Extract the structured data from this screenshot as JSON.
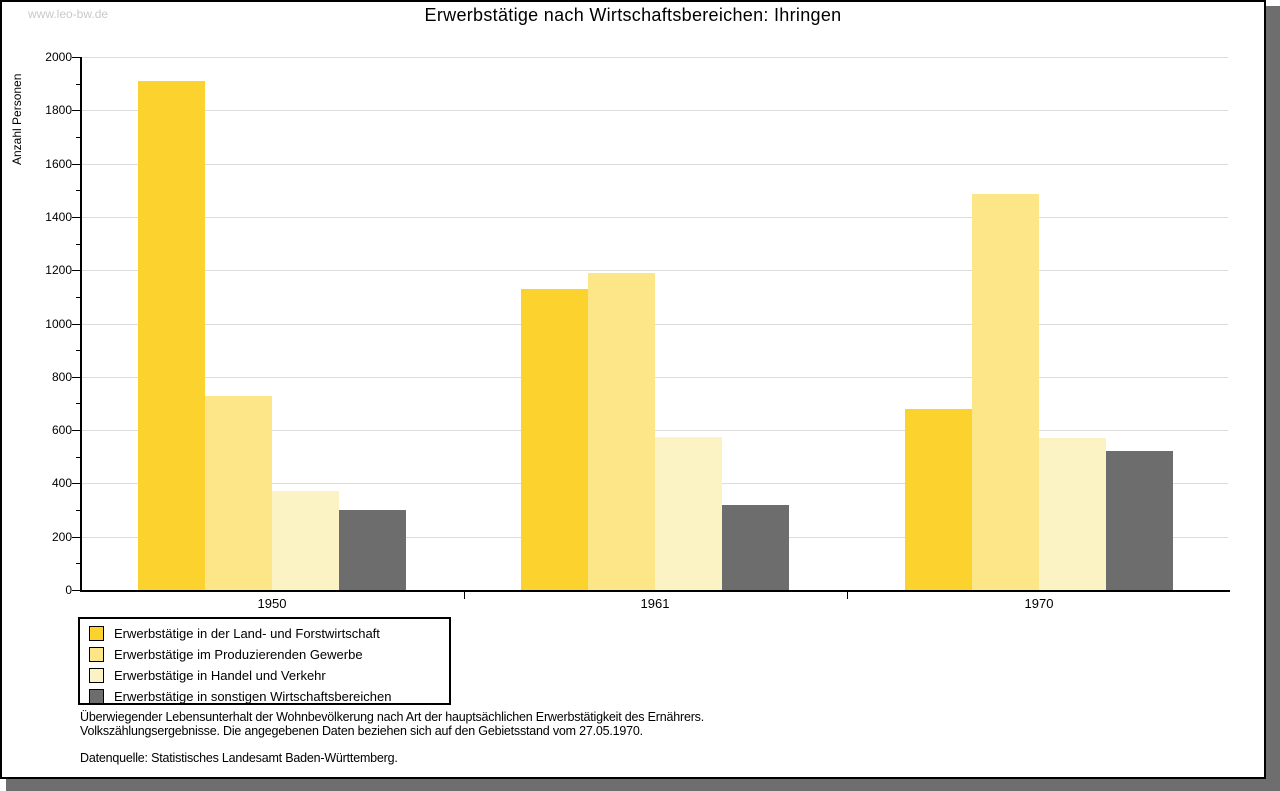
{
  "watermark": "www.leo-bw.de",
  "header": {
    "title": "Erwerbstätige nach Wirtschaftsbereichen: Ihringen"
  },
  "chart_data": {
    "type": "bar",
    "title": "Erwerbstätige nach Wirtschaftsbereichen: Ihringen",
    "xlabel": "",
    "ylabel": "Anzahl Personen",
    "ylim": [
      0,
      2000
    ],
    "ytick_step": 200,
    "minor_tick_step": 100,
    "grid": true,
    "legend_position": "bottom-left",
    "categories": [
      "1950",
      "1961",
      "1970"
    ],
    "series": [
      {
        "name": "Erwerbstätige in der Land- und Forstwirtschaft",
        "color": "#fcd22e",
        "values": [
          1910,
          1130,
          680
        ]
      },
      {
        "name": "Erwerbstätige im Produzierenden Gewerbe",
        "color": "#fce687",
        "values": [
          730,
          1190,
          1485
        ]
      },
      {
        "name": "Erwerbstätige in Handel und Verkehr",
        "color": "#fcf3c4",
        "values": [
          370,
          575,
          570
        ]
      },
      {
        "name": "Erwerbstätige in sonstigen Wirtschaftsbereichen",
        "color": "#6d6d6d",
        "values": [
          300,
          320,
          520
        ]
      }
    ],
    "colors": {
      "axis": "#000000",
      "gridline": "#dcdcdc",
      "shadow": "#6e6e6e",
      "watermark": "#c9c9c9"
    }
  },
  "footer": {
    "note_line1": "Überwiegender Lebensunterhalt der Wohnbevölkerung nach Art der hauptsächlichen Erwerbstätigkeit des Ernährers.",
    "note_line2": "Volkszählungsergebnisse. Die angegebenen Daten beziehen sich auf den Gebietsstand vom 27.05.1970.",
    "source": "Datenquelle: Statistisches Landesamt Baden-Württemberg."
  }
}
